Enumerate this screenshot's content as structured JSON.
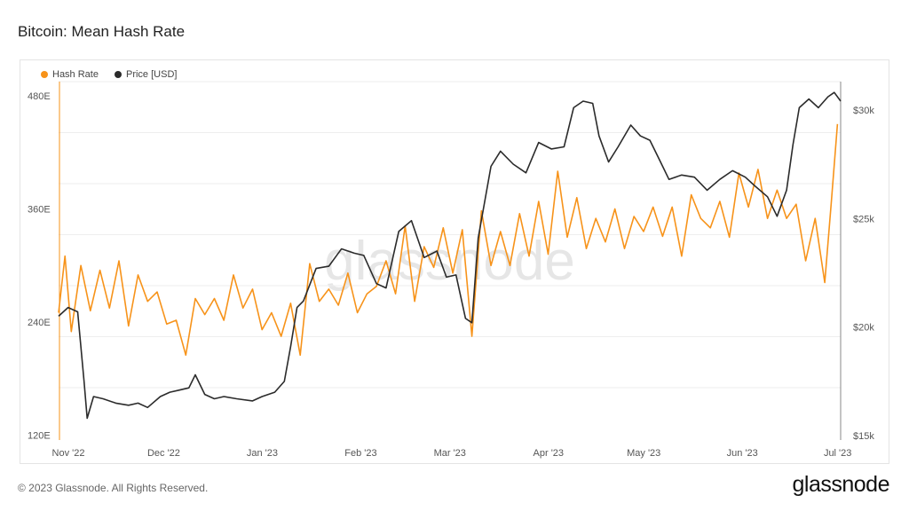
{
  "title": "Bitcoin: Mean Hash Rate",
  "footer": "© 2023 Glassnode. All Rights Reserved.",
  "brand": "glassnode",
  "watermark": "glassnode",
  "colors": {
    "hash_rate": "#f7931a",
    "price": "#2b2b2b",
    "grid": "#eeeeee"
  },
  "chart_data": {
    "type": "line",
    "legend_position": "top-left",
    "grid": true,
    "x_tick_labels": [
      "Nov '22",
      "Dec '22",
      "Jan '23",
      "Feb '23",
      "Mar '23",
      "Apr '23",
      "May '23",
      "Jun '23",
      "Jul '23"
    ],
    "x_range": [
      "2022-11-01",
      "2023-07-05"
    ],
    "y_left": {
      "ticks": [
        "120E",
        "240E",
        "360E",
        "480E"
      ],
      "tick_values": [
        120,
        240,
        360,
        480
      ],
      "range": [
        115,
        495
      ]
    },
    "y_right": {
      "ticks": [
        "$15k",
        "$20k",
        "$25k",
        "$30k"
      ],
      "tick_values": [
        15000,
        20000,
        25000,
        30000
      ],
      "range": [
        14800,
        31300
      ]
    },
    "series": [
      {
        "name": "Hash Rate",
        "axis": "left",
        "points": [
          [
            "2022-11-01",
            250
          ],
          [
            "2022-11-03",
            310
          ],
          [
            "2022-11-05",
            230
          ],
          [
            "2022-11-08",
            300
          ],
          [
            "2022-11-11",
            252
          ],
          [
            "2022-11-14",
            295
          ],
          [
            "2022-11-17",
            255
          ],
          [
            "2022-11-20",
            305
          ],
          [
            "2022-11-23",
            236
          ],
          [
            "2022-11-26",
            290
          ],
          [
            "2022-11-29",
            262
          ],
          [
            "2022-12-02",
            272
          ],
          [
            "2022-12-05",
            238
          ],
          [
            "2022-12-08",
            242
          ],
          [
            "2022-12-11",
            205
          ],
          [
            "2022-12-14",
            265
          ],
          [
            "2022-12-17",
            248
          ],
          [
            "2022-12-20",
            265
          ],
          [
            "2022-12-23",
            242
          ],
          [
            "2022-12-26",
            290
          ],
          [
            "2022-12-29",
            255
          ],
          [
            "2023-01-01",
            275
          ],
          [
            "2023-01-04",
            232
          ],
          [
            "2023-01-07",
            250
          ],
          [
            "2023-01-10",
            225
          ],
          [
            "2023-01-13",
            260
          ],
          [
            "2023-01-16",
            205
          ],
          [
            "2023-01-19",
            302
          ],
          [
            "2023-01-22",
            262
          ],
          [
            "2023-01-25",
            275
          ],
          [
            "2023-01-28",
            258
          ],
          [
            "2023-01-31",
            292
          ],
          [
            "2023-02-03",
            250
          ],
          [
            "2023-02-06",
            270
          ],
          [
            "2023-02-09",
            278
          ],
          [
            "2023-02-12",
            305
          ],
          [
            "2023-02-15",
            270
          ],
          [
            "2023-02-18",
            342
          ],
          [
            "2023-02-21",
            262
          ],
          [
            "2023-02-24",
            320
          ],
          [
            "2023-02-27",
            298
          ],
          [
            "2023-03-02",
            340
          ],
          [
            "2023-03-05",
            292
          ],
          [
            "2023-03-08",
            338
          ],
          [
            "2023-03-11",
            225
          ],
          [
            "2023-03-14",
            358
          ],
          [
            "2023-03-17",
            300
          ],
          [
            "2023-03-20",
            336
          ],
          [
            "2023-03-23",
            300
          ],
          [
            "2023-03-26",
            355
          ],
          [
            "2023-03-29",
            310
          ],
          [
            "2023-04-01",
            368
          ],
          [
            "2023-04-04",
            312
          ],
          [
            "2023-04-07",
            400
          ],
          [
            "2023-04-10",
            330
          ],
          [
            "2023-04-13",
            372
          ],
          [
            "2023-04-16",
            318
          ],
          [
            "2023-04-19",
            350
          ],
          [
            "2023-04-22",
            325
          ],
          [
            "2023-04-25",
            360
          ],
          [
            "2023-04-28",
            318
          ],
          [
            "2023-05-01",
            352
          ],
          [
            "2023-05-04",
            336
          ],
          [
            "2023-05-07",
            362
          ],
          [
            "2023-05-10",
            331
          ],
          [
            "2023-05-13",
            362
          ],
          [
            "2023-05-16",
            310
          ],
          [
            "2023-05-19",
            375
          ],
          [
            "2023-05-22",
            350
          ],
          [
            "2023-05-25",
            340
          ],
          [
            "2023-05-28",
            368
          ],
          [
            "2023-05-31",
            330
          ],
          [
            "2023-06-03",
            398
          ],
          [
            "2023-06-06",
            362
          ],
          [
            "2023-06-09",
            402
          ],
          [
            "2023-06-12",
            350
          ],
          [
            "2023-06-15",
            380
          ],
          [
            "2023-06-18",
            350
          ],
          [
            "2023-06-21",
            365
          ],
          [
            "2023-06-24",
            305
          ],
          [
            "2023-06-27",
            350
          ],
          [
            "2023-06-30",
            282
          ],
          [
            "2023-07-02",
            365
          ],
          [
            "2023-07-04",
            450
          ]
        ]
      },
      {
        "name": "Price [USD]",
        "axis": "right",
        "points": [
          [
            "2022-11-01",
            20500
          ],
          [
            "2022-11-04",
            20900
          ],
          [
            "2022-11-07",
            20700
          ],
          [
            "2022-11-09",
            17500
          ],
          [
            "2022-11-10",
            15800
          ],
          [
            "2022-11-12",
            16800
          ],
          [
            "2022-11-15",
            16700
          ],
          [
            "2022-11-19",
            16500
          ],
          [
            "2022-11-23",
            16400
          ],
          [
            "2022-11-26",
            16500
          ],
          [
            "2022-11-29",
            16300
          ],
          [
            "2022-12-03",
            16800
          ],
          [
            "2022-12-06",
            17000
          ],
          [
            "2022-12-09",
            17100
          ],
          [
            "2022-12-12",
            17200
          ],
          [
            "2022-12-14",
            17800
          ],
          [
            "2022-12-17",
            16900
          ],
          [
            "2022-12-20",
            16700
          ],
          [
            "2022-12-23",
            16800
          ],
          [
            "2022-12-27",
            16700
          ],
          [
            "2023-01-01",
            16600
          ],
          [
            "2023-01-04",
            16800
          ],
          [
            "2023-01-08",
            17000
          ],
          [
            "2023-01-11",
            17500
          ],
          [
            "2023-01-13",
            19100
          ],
          [
            "2023-01-15",
            20900
          ],
          [
            "2023-01-17",
            21200
          ],
          [
            "2023-01-21",
            22700
          ],
          [
            "2023-01-25",
            22800
          ],
          [
            "2023-01-29",
            23600
          ],
          [
            "2023-02-02",
            23400
          ],
          [
            "2023-02-05",
            23300
          ],
          [
            "2023-02-09",
            22000
          ],
          [
            "2023-02-12",
            21800
          ],
          [
            "2023-02-16",
            24400
          ],
          [
            "2023-02-20",
            24900
          ],
          [
            "2023-02-24",
            23200
          ],
          [
            "2023-02-28",
            23500
          ],
          [
            "2023-03-03",
            22300
          ],
          [
            "2023-03-06",
            22400
          ],
          [
            "2023-03-09",
            20400
          ],
          [
            "2023-03-11",
            20200
          ],
          [
            "2023-03-13",
            24100
          ],
          [
            "2023-03-17",
            27400
          ],
          [
            "2023-03-20",
            28100
          ],
          [
            "2023-03-24",
            27500
          ],
          [
            "2023-03-28",
            27100
          ],
          [
            "2023-04-01",
            28500
          ],
          [
            "2023-04-05",
            28200
          ],
          [
            "2023-04-09",
            28300
          ],
          [
            "2023-04-12",
            30100
          ],
          [
            "2023-04-15",
            30400
          ],
          [
            "2023-04-18",
            30300
          ],
          [
            "2023-04-20",
            28800
          ],
          [
            "2023-04-23",
            27600
          ],
          [
            "2023-04-26",
            28300
          ],
          [
            "2023-04-30",
            29300
          ],
          [
            "2023-05-03",
            28800
          ],
          [
            "2023-05-06",
            28600
          ],
          [
            "2023-05-09",
            27700
          ],
          [
            "2023-05-12",
            26800
          ],
          [
            "2023-05-16",
            27000
          ],
          [
            "2023-05-20",
            26900
          ],
          [
            "2023-05-24",
            26300
          ],
          [
            "2023-05-28",
            26800
          ],
          [
            "2023-06-01",
            27200
          ],
          [
            "2023-06-05",
            26900
          ],
          [
            "2023-06-08",
            26500
          ],
          [
            "2023-06-12",
            26000
          ],
          [
            "2023-06-15",
            25100
          ],
          [
            "2023-06-18",
            26300
          ],
          [
            "2023-06-20",
            28400
          ],
          [
            "2023-06-22",
            30100
          ],
          [
            "2023-06-25",
            30500
          ],
          [
            "2023-06-28",
            30100
          ],
          [
            "2023-07-01",
            30600
          ],
          [
            "2023-07-03",
            30800
          ],
          [
            "2023-07-05",
            30400
          ]
        ]
      }
    ]
  }
}
